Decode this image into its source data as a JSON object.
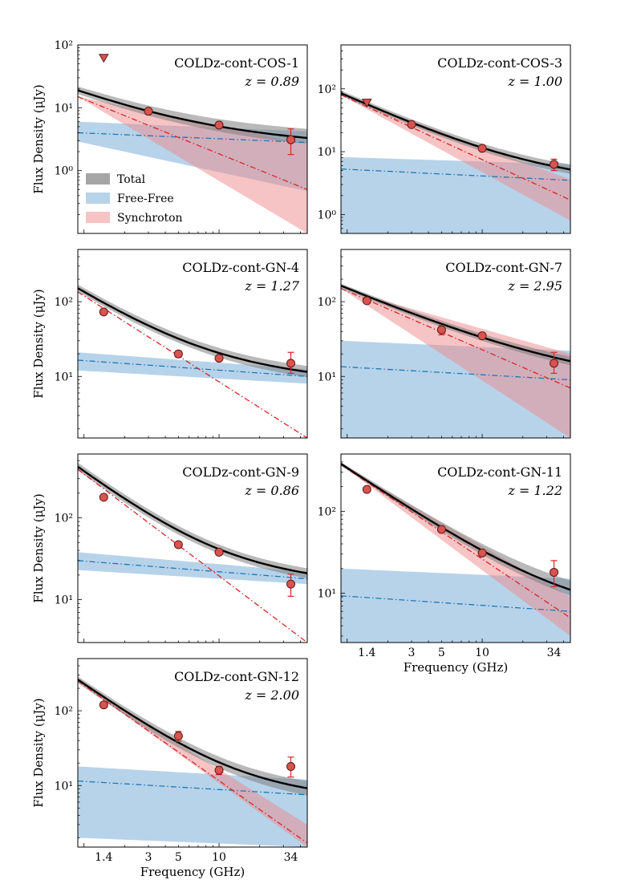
{
  "figure": {
    "ylabel": "Flux Density (μJy)",
    "xlabel": "Frequency (GHz)",
    "legend": [
      "Total",
      "Free-Free",
      "Synchroton"
    ]
  },
  "colors": {
    "total": "#000000",
    "total_band": "#7f7f7f",
    "free_free": "#1f77b4",
    "free_free_band": "#6fa8d6",
    "synchrotron": "#d62728",
    "synchrotron_band": "#ee8a8b",
    "marker_face": "#d9534f",
    "marker_edge": "#5a1a1a"
  },
  "chart_data": [
    {
      "type": "line",
      "title": "COLDz-cont-COS-1",
      "redshift": "z = 0.89",
      "xscale": "log",
      "yscale": "log",
      "xlim": [
        0.9,
        45
      ],
      "ylim": [
        0.1,
        100
      ],
      "yticks": [
        {
          "v": 1,
          "label": "10⁰"
        },
        {
          "v": 10,
          "label": "10¹"
        },
        {
          "v": 100,
          "label": "10²"
        }
      ],
      "show_xticklabels": false,
      "show_ylabel": true,
      "show_legend": true,
      "total": {
        "S0": 19,
        "alpha": -0.83,
        "band_lo": 0.87,
        "band_hi": 1.15,
        "band_lo_hi": 0.8,
        "band_hi_hi": 1.4
      },
      "free_free": {
        "lo_start": 2.9,
        "lo_end": 0.47,
        "mid_start": 4.0,
        "mid_end": 2.8,
        "hi_start": 6.0,
        "hi_end": 4.2
      },
      "synchrotron": {
        "mid_start": 15,
        "mid_end": 0.5,
        "lo_end": 0.1,
        "hi_end": 2.6
      },
      "detections": [
        {
          "x": 3.0,
          "y": 8.8,
          "err": 0.8
        },
        {
          "x": 10.0,
          "y": 5.3,
          "err": 0.5
        },
        {
          "x": 34.0,
          "y": 3.1,
          "err_lo": 1.3,
          "err_hi": 1.5
        }
      ],
      "upper_limits": [
        {
          "x": 1.4,
          "y": 62
        }
      ]
    },
    {
      "type": "line",
      "title": "COLDz-cont-COS-3",
      "redshift": "z = 1.00",
      "xscale": "log",
      "yscale": "log",
      "xlim": [
        0.9,
        45
      ],
      "ylim": [
        0.5,
        500
      ],
      "yticks": [
        {
          "v": 1,
          "label": "10⁰"
        },
        {
          "v": 10,
          "label": "10¹"
        },
        {
          "v": 100,
          "label": "10²"
        }
      ],
      "show_xticklabels": false,
      "show_ylabel": false,
      "show_legend": false,
      "total": {
        "S0": 85,
        "alpha": -0.75,
        "band_lo": 0.92,
        "band_hi": 1.1,
        "band_lo_hi": 0.85,
        "band_hi_hi": 1.2
      },
      "free_free": {
        "lo_start": 0.5,
        "lo_end": 0.5,
        "mid_start": 5.3,
        "mid_end": 3.5,
        "hi_start": 8.2,
        "hi_end": 6.3
      },
      "synchrotron": {
        "mid_start": 80,
        "mid_end": 1.7,
        "lo_end": 0.8,
        "hi_end": 3.6
      },
      "detections": [
        {
          "x": 3.0,
          "y": 27,
          "err": 2
        },
        {
          "x": 10.0,
          "y": 11.3,
          "err": 0.8
        },
        {
          "x": 34.0,
          "y": 6.3,
          "err": 1.3
        }
      ],
      "upper_limits": [
        {
          "x": 1.4,
          "y": 60
        }
      ]
    },
    {
      "type": "line",
      "title": "COLDz-cont-GN-4",
      "redshift": "z = 1.27",
      "xscale": "log",
      "yscale": "log",
      "xlim": [
        0.9,
        45
      ],
      "ylim": [
        1.5,
        500
      ],
      "yticks": [
        {
          "v": 10,
          "label": "10¹"
        },
        {
          "v": 100,
          "label": "10²"
        }
      ],
      "show_xticklabels": false,
      "show_ylabel": true,
      "show_legend": false,
      "total": {
        "S0": 150,
        "alpha": -1.6,
        "band_lo": 0.9,
        "band_hi": 1.12,
        "band_lo_hi": 0.85,
        "band_hi_hi": 1.2
      },
      "free_free": {
        "lo_start": 12,
        "lo_end": 8,
        "mid_start": 16.5,
        "mid_end": 10,
        "hi_start": 21,
        "hi_end": 12.5
      },
      "synchrotron": {
        "mid_start": 135,
        "mid_end": 1.5,
        "lo_end": 1.5,
        "hi_end": 1.5
      },
      "detections": [
        {
          "x": 1.4,
          "y": 73,
          "err": 4
        },
        {
          "x": 5.0,
          "y": 20,
          "err": 2
        },
        {
          "x": 10.0,
          "y": 17.5,
          "err": 1.2
        },
        {
          "x": 34.0,
          "y": 15,
          "err_lo": 4,
          "err_hi": 6
        }
      ],
      "upper_limits": []
    },
    {
      "type": "line",
      "title": "COLDz-cont-GN-7",
      "redshift": "z = 2.95",
      "xscale": "log",
      "yscale": "log",
      "xlim": [
        0.9,
        45
      ],
      "ylim": [
        1.5,
        500
      ],
      "yticks": [
        {
          "v": 10,
          "label": "10¹"
        },
        {
          "v": 100,
          "label": "10²"
        }
      ],
      "show_xticklabels": false,
      "show_ylabel": false,
      "show_legend": false,
      "total": {
        "S0": 160,
        "alpha": -0.6,
        "band_lo": 0.93,
        "band_hi": 1.07,
        "band_lo_hi": 0.88,
        "band_hi_hi": 1.15
      },
      "free_free": {
        "lo_start": 1.5,
        "lo_end": 1.5,
        "mid_start": 13.5,
        "mid_end": 9,
        "hi_start": 30,
        "hi_end": 22
      },
      "synchrotron": {
        "mid_start": 150,
        "mid_end": 7,
        "lo_end": 1.5,
        "hi_end": 20
      },
      "detections": [
        {
          "x": 1.4,
          "y": 103,
          "err": 6
        },
        {
          "x": 5.0,
          "y": 42,
          "err": 6
        },
        {
          "x": 10.0,
          "y": 35,
          "err": 2
        },
        {
          "x": 34.0,
          "y": 15,
          "err_lo": 4,
          "err_hi": 6
        }
      ],
      "upper_limits": []
    },
    {
      "type": "line",
      "title": "COLDz-cont-GN-9",
      "redshift": "z = 0.86",
      "xscale": "log",
      "yscale": "log",
      "xlim": [
        0.9,
        45
      ],
      "ylim": [
        3,
        600
      ],
      "yticks": [
        {
          "v": 10,
          "label": "10¹"
        },
        {
          "v": 100,
          "label": "10²"
        }
      ],
      "show_xticklabels": false,
      "show_ylabel": true,
      "show_legend": false,
      "total": {
        "S0": 420,
        "alpha": -2.0,
        "band_lo": 0.9,
        "band_hi": 1.12,
        "band_lo_hi": 0.87,
        "band_hi_hi": 1.15
      },
      "free_free": {
        "lo_start": 23,
        "lo_end": 15.5,
        "mid_start": 30,
        "mid_end": 18,
        "hi_start": 38,
        "hi_end": 22
      },
      "synchrotron": {
        "mid_start": 390,
        "mid_end": 3,
        "lo_end": 3,
        "hi_end": 3
      },
      "detections": [
        {
          "x": 1.4,
          "y": 178,
          "err": 8
        },
        {
          "x": 5.0,
          "y": 47,
          "err": 3
        },
        {
          "x": 10.0,
          "y": 38,
          "err": 2
        },
        {
          "x": 34.0,
          "y": 15.5,
          "err_lo": 4.5,
          "err_hi": 5
        }
      ],
      "upper_limits": []
    },
    {
      "type": "line",
      "title": "COLDz-cont-GN-11",
      "redshift": "z = 1.22",
      "xscale": "log",
      "yscale": "log",
      "xlim": [
        0.9,
        45
      ],
      "ylim": [
        2.5,
        500
      ],
      "yticks": [
        {
          "v": 10,
          "label": "10¹"
        },
        {
          "v": 100,
          "label": "10²"
        }
      ],
      "xticks": [
        {
          "v": 1.4,
          "label": "1.4"
        },
        {
          "v": 3,
          "label": "3"
        },
        {
          "v": 5,
          "label": "5"
        },
        {
          "v": 10,
          "label": "10"
        },
        {
          "v": 34,
          "label": "34"
        }
      ],
      "show_xticklabels": true,
      "show_ylabel": false,
      "show_legend": false,
      "total": {
        "S0": 380,
        "alpha": -0.93,
        "band_lo": 0.95,
        "band_hi": 1.05,
        "band_lo_hi": 0.85,
        "band_hi_hi": 1.3
      },
      "free_free": {
        "lo_start": 2.5,
        "lo_end": 2.5,
        "mid_start": 9.3,
        "mid_end": 6,
        "hi_start": 20,
        "hi_end": 15
      },
      "synchrotron": {
        "mid_start": 370,
        "mid_end": 5,
        "lo_end": 3,
        "hi_end": 9
      },
      "detections": [
        {
          "x": 1.4,
          "y": 185,
          "err": 8
        },
        {
          "x": 5.0,
          "y": 60,
          "err": 4
        },
        {
          "x": 10.0,
          "y": 31,
          "err": 2
        },
        {
          "x": 34.0,
          "y": 18,
          "err_lo": 6,
          "err_hi": 7
        }
      ],
      "upper_limits": []
    },
    {
      "type": "line",
      "title": "COLDz-cont-GN-12",
      "redshift": "z = 2.00",
      "xscale": "log",
      "yscale": "log",
      "xlim": [
        0.9,
        45
      ],
      "ylim": [
        1.5,
        500
      ],
      "yticks": [
        {
          "v": 10,
          "label": "10¹"
        },
        {
          "v": 100,
          "label": "10²"
        }
      ],
      "xticks": [
        {
          "v": 1.4,
          "label": "1.4"
        },
        {
          "v": 3,
          "label": "3"
        },
        {
          "v": 5,
          "label": "5"
        },
        {
          "v": 10,
          "label": "10"
        },
        {
          "v": 34,
          "label": "34"
        }
      ],
      "show_xticklabels": true,
      "show_ylabel": true,
      "show_legend": false,
      "total": {
        "S0": 260,
        "alpha": -1.3,
        "band_lo": 0.9,
        "band_hi": 1.1,
        "band_lo_hi": 0.8,
        "band_hi_hi": 1.25
      },
      "free_free": {
        "lo_start": 2,
        "lo_end": 1.5,
        "mid_start": 11.5,
        "mid_end": 7.5,
        "hi_start": 18,
        "hi_end": 12
      },
      "synchrotron": {
        "mid_start": 250,
        "mid_end": 1.7,
        "lo_end": 1.5,
        "hi_end": 3
      },
      "detections": [
        {
          "x": 1.4,
          "y": 120,
          "err": 6
        },
        {
          "x": 5.0,
          "y": 46,
          "err": 7
        },
        {
          "x": 10.0,
          "y": 16,
          "err": 2
        },
        {
          "x": 34.0,
          "y": 18,
          "err_lo": 5,
          "err_hi": 6
        }
      ],
      "upper_limits": []
    }
  ]
}
